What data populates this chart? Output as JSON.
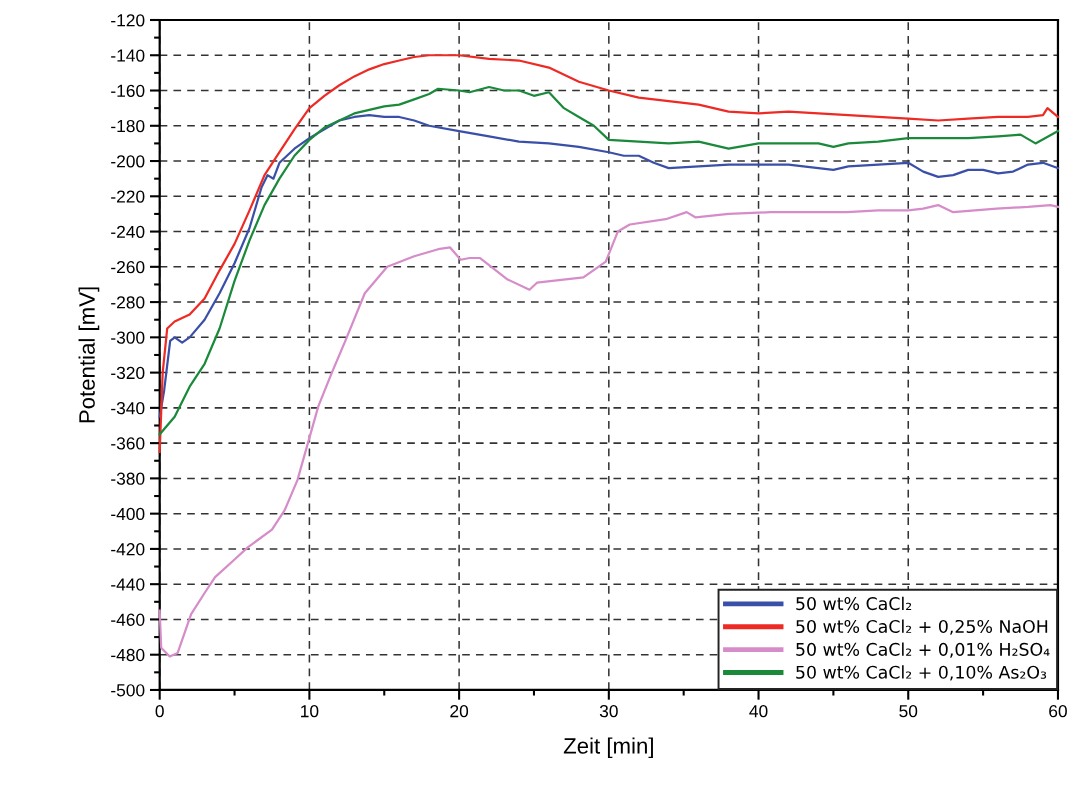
{
  "chart_data": {
    "type": "line",
    "xlabel": "Zeit [min]",
    "ylabel": "Potential [mV]",
    "xlim": [
      0,
      60
    ],
    "ylim": [
      -500,
      -120
    ],
    "xticks": [
      0,
      {
        "value": 5,
        "label": null
      },
      10,
      {
        "value": 15,
        "label": null
      },
      20,
      {
        "value": 25,
        "label": null
      },
      30,
      {
        "value": 35,
        "label": null
      },
      40,
      {
        "value": 45,
        "label": null
      },
      50,
      {
        "value": 55,
        "label": null
      },
      60
    ],
    "yticks": [
      -500,
      {
        "value": -490,
        "label": null
      },
      -480,
      {
        "value": -470,
        "label": null
      },
      -460,
      {
        "value": -450,
        "label": null
      },
      -440,
      {
        "value": -430,
        "label": null
      },
      -420,
      {
        "value": -410,
        "label": null
      },
      -400,
      {
        "value": -390,
        "label": null
      },
      -380,
      {
        "value": -370,
        "label": null
      },
      -360,
      {
        "value": -350,
        "label": null
      },
      -340,
      {
        "value": -330,
        "label": null
      },
      -320,
      {
        "value": -310,
        "label": null
      },
      -300,
      {
        "value": -290,
        "label": null
      },
      -280,
      {
        "value": -270,
        "label": null
      },
      -260,
      {
        "value": -250,
        "label": null
      },
      -240,
      {
        "value": -230,
        "label": null
      },
      -220,
      {
        "value": -210,
        "label": null
      },
      -200,
      {
        "value": -190,
        "label": null
      },
      -180,
      {
        "value": -170,
        "label": null
      },
      -160,
      {
        "value": -150,
        "label": null
      },
      -140,
      {
        "value": -130,
        "label": null
      },
      -120
    ],
    "grid": true,
    "legend": "bottom right",
    "marker": "none",
    "line_style": "solid",
    "series": [
      {
        "name": "50 wt% CaCl₂",
        "color": "#3a4fa8",
        "x": [
          0,
          0.3,
          0.7,
          1.0,
          1.5,
          2,
          3,
          4,
          5,
          6,
          6.8,
          7.2,
          7.6,
          8,
          9,
          10,
          11,
          12,
          13,
          14,
          15,
          16,
          17,
          18,
          20,
          22,
          24,
          26,
          28,
          30,
          31,
          32,
          33,
          34,
          36,
          38,
          40,
          42,
          44,
          45,
          46,
          48,
          50,
          51,
          52,
          53,
          54,
          55,
          56,
          57,
          58,
          59,
          60
        ],
        "values": [
          -345,
          -330,
          -302,
          -300,
          -303,
          -300,
          -290,
          -275,
          -258,
          -238,
          -215,
          -208,
          -210,
          -201,
          -193,
          -187,
          -182,
          -177,
          -175,
          -174,
          -175,
          -175,
          -177,
          -180,
          -183,
          -186,
          -189,
          -190,
          -192,
          -195,
          -197,
          -197,
          -201,
          -204,
          -203,
          -202,
          -202,
          -202,
          -204,
          -205,
          -203,
          -202,
          -201,
          -206,
          -209,
          -208,
          -205,
          -205,
          -207,
          -206,
          -202,
          -201,
          -204
        ]
      },
      {
        "name": "50 wt% CaCl₂ + 0,25% NaOH",
        "color": "#ee2a24",
        "x": [
          0,
          0.2,
          0.5,
          1,
          2,
          3,
          4,
          5,
          6,
          7,
          8,
          9,
          10,
          11,
          12,
          13,
          14,
          15,
          16,
          17,
          18,
          20,
          22,
          24,
          26,
          28,
          30,
          32,
          34,
          36,
          38,
          40,
          42,
          44,
          46,
          48,
          50,
          52,
          54,
          56,
          58,
          59,
          59.3,
          60
        ],
        "values": [
          -365,
          -320,
          -295,
          -291,
          -287,
          -278,
          -262,
          -247,
          -228,
          -208,
          -195,
          -182,
          -170,
          -163,
          -157,
          -152,
          -148,
          -145,
          -143,
          -141,
          -140,
          -140,
          -142,
          -143,
          -147,
          -155,
          -160,
          -164,
          -166,
          -168,
          -172,
          -173,
          -172,
          -173,
          -174,
          -175,
          -176,
          -177,
          -176,
          -175,
          -175,
          -174,
          -170,
          -175
        ]
      },
      {
        "name": "50 wt% CaCl₂ + 0,01% H₂SO₄",
        "color": "#d68cc8",
        "x": [
          0,
          0.1,
          0.67,
          1.2,
          2.1,
          3,
          3.7,
          5,
          5.9,
          7.5,
          8.35,
          9.2,
          9.9,
          10.6,
          11.5,
          12.4,
          13.7,
          15.2,
          17,
          18.6,
          19.4,
          20.1,
          20.7,
          21.4,
          23.2,
          24.7,
          25.2,
          28.3,
          29.8,
          30.6,
          31.4,
          33.8,
          35.2,
          35.8,
          38,
          40.8,
          43,
          45.9,
          48,
          50,
          51,
          52,
          53,
          55.9,
          58,
          59.5,
          60
        ],
        "values": [
          -455,
          -476,
          -481,
          -479,
          -457,
          -445,
          -436,
          -426,
          -419,
          -409,
          -398,
          -381,
          -360,
          -339,
          -320,
          -302,
          -275,
          -260,
          -254,
          -250,
          -249,
          -256,
          -255,
          -255,
          -267,
          -273,
          -269,
          -266,
          -257,
          -240,
          -236,
          -233,
          -229,
          -232,
          -230,
          -229,
          -229,
          -229,
          -228,
          -228,
          -227,
          -225,
          -229,
          -227,
          -226,
          -225,
          -226
        ]
      },
      {
        "name": "50 wt% CaCl₂ + 0,10% As₂O₃",
        "color": "#1a8a3a",
        "x": [
          0,
          1,
          2,
          3,
          4,
          5,
          6,
          7,
          8,
          9,
          10,
          11,
          12,
          13,
          14,
          15,
          16,
          17,
          18,
          18.6,
          20,
          20.7,
          22,
          23,
          24,
          25,
          26,
          27,
          28,
          29,
          30,
          32,
          34,
          36,
          38,
          40,
          42,
          44,
          45,
          46,
          48,
          50,
          52,
          54,
          56,
          57.5,
          58.5,
          60
        ],
        "values": [
          -355,
          -345,
          -328,
          -315,
          -295,
          -268,
          -245,
          -225,
          -210,
          -197,
          -188,
          -181,
          -177,
          -173,
          -171,
          -169,
          -168,
          -165,
          -162,
          -159,
          -160,
          -161,
          -158,
          -160,
          -160,
          -163,
          -161,
          -170,
          -175,
          -180,
          -188,
          -189,
          -190,
          -189,
          -193,
          -190,
          -190,
          -190,
          -192,
          -190,
          -189,
          -187,
          -187,
          -187,
          -186,
          -185,
          -190,
          -183
        ]
      }
    ]
  }
}
